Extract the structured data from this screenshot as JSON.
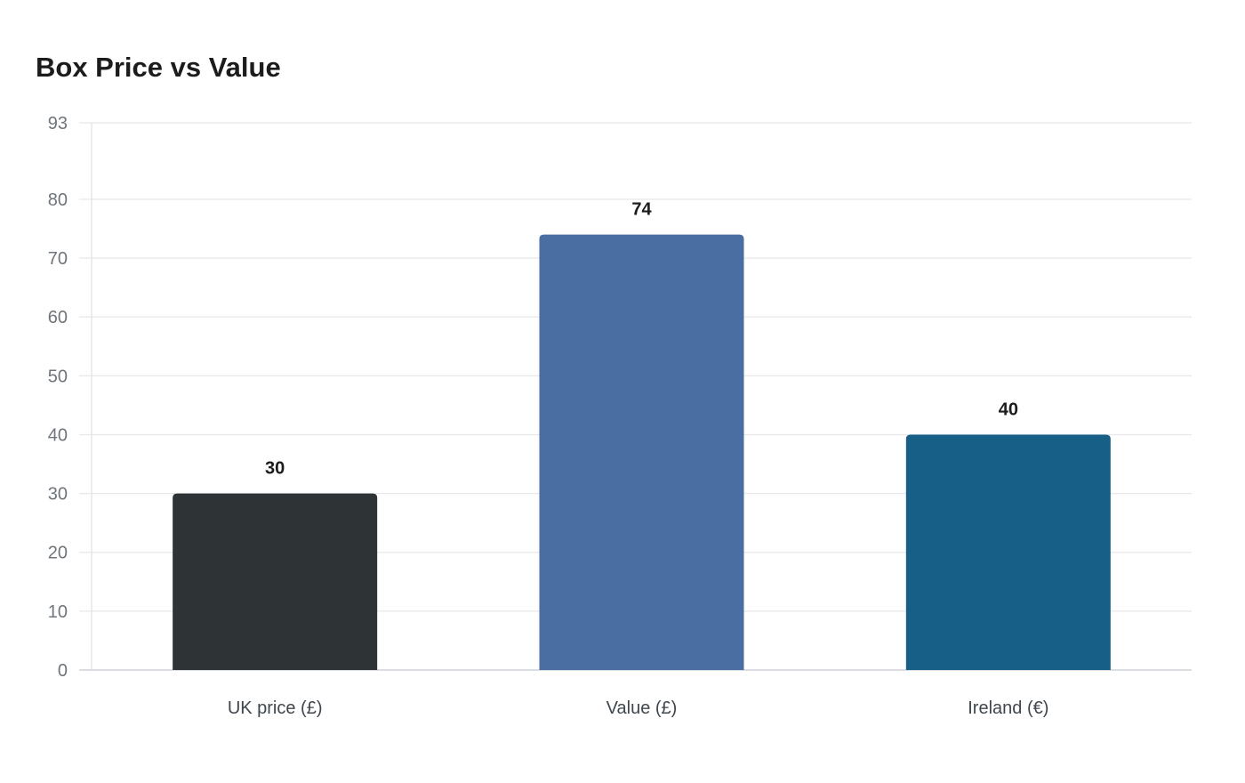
{
  "chart_data": {
    "type": "bar",
    "title": "Box Price vs Value",
    "xlabel": "",
    "ylabel": "",
    "categories": [
      "UK price (£)",
      "Value (£)",
      "Ireland (€)"
    ],
    "values": [
      30,
      74,
      40
    ],
    "bar_colors": [
      "#2e3436",
      "#4a6ea1",
      "#175f87"
    ],
    "ylim": [
      0,
      93
    ],
    "yticks": [
      0,
      10,
      20,
      30,
      40,
      50,
      60,
      70,
      80,
      93
    ],
    "ytick_labels": [
      "0",
      "10",
      "20",
      "30",
      "40",
      "50",
      "60",
      "70",
      "80",
      "93"
    ],
    "data_labels": [
      "30",
      "74",
      "40"
    ],
    "grid": true,
    "legend": "none"
  }
}
